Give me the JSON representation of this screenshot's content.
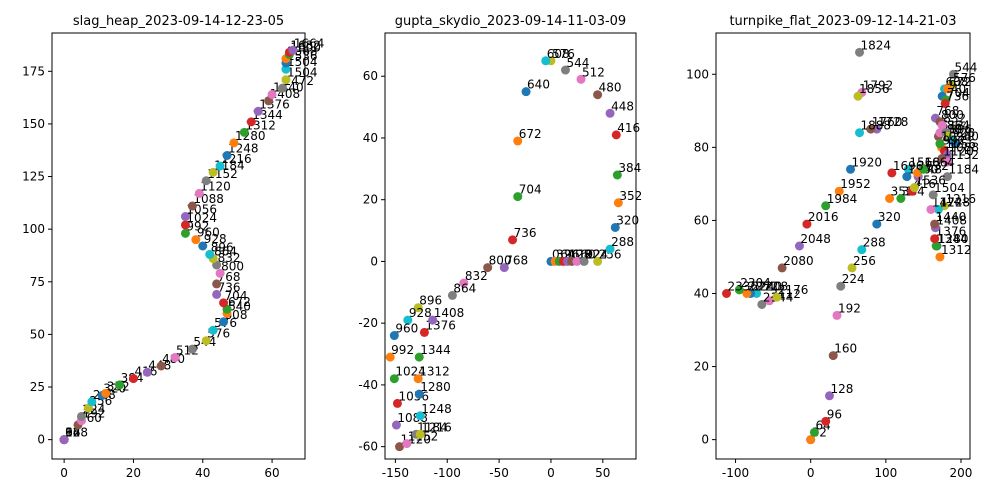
{
  "palette": [
    "#1f77b4",
    "#ff7f0e",
    "#2ca02c",
    "#d62728",
    "#9467bd",
    "#8c564b",
    "#e377c2",
    "#7f7f7f",
    "#bcbd22",
    "#17becf"
  ],
  "chart_data": [
    {
      "type": "scatter",
      "title": "slag_heap_2023-09-14-12-23-05",
      "xlim": [
        -3.5,
        69.5
      ],
      "ylim": [
        -9.2,
        193.2
      ],
      "xticks": [
        0,
        20,
        40,
        60
      ],
      "yticks": [
        0,
        25,
        50,
        75,
        100,
        125,
        150,
        175
      ],
      "points": [
        {
          "x": 0,
          "y": 0,
          "label": "0"
        },
        {
          "x": 0,
          "y": 0,
          "label": "32"
        },
        {
          "x": 0,
          "y": 0,
          "label": "64"
        },
        {
          "x": 0,
          "y": 0,
          "label": "96"
        },
        {
          "x": 0,
          "y": 0,
          "label": "128"
        },
        {
          "x": 4,
          "y": 7,
          "label": "160"
        },
        {
          "x": 5,
          "y": 9,
          "label": "192"
        },
        {
          "x": 5,
          "y": 11,
          "label": "224"
        },
        {
          "x": 7,
          "y": 15,
          "label": "256"
        },
        {
          "x": 8,
          "y": 18,
          "label": "288"
        },
        {
          "x": 11,
          "y": 21,
          "label": "320"
        },
        {
          "x": 12,
          "y": 22,
          "label": "352"
        },
        {
          "x": 16,
          "y": 26,
          "label": "384"
        },
        {
          "x": 20,
          "y": 29,
          "label": "416"
        },
        {
          "x": 24,
          "y": 32,
          "label": "448"
        },
        {
          "x": 28,
          "y": 35,
          "label": "480"
        },
        {
          "x": 32,
          "y": 39,
          "label": "512"
        },
        {
          "x": 37,
          "y": 43,
          "label": "544"
        },
        {
          "x": 41,
          "y": 47,
          "label": "576"
        },
        {
          "x": 43,
          "y": 52,
          "label": "576b"
        },
        {
          "x": 46,
          "y": 56,
          "label": "608"
        },
        {
          "x": 47,
          "y": 60,
          "label": "640"
        },
        {
          "x": 47,
          "y": 62,
          "label": "672"
        },
        {
          "x": 46,
          "y": 65,
          "label": "704"
        },
        {
          "x": 44,
          "y": 69,
          "label": "736"
        },
        {
          "x": 44,
          "y": 74,
          "label": "768"
        },
        {
          "x": 45,
          "y": 79,
          "label": "800"
        },
        {
          "x": 44,
          "y": 83,
          "label": "832"
        },
        {
          "x": 43,
          "y": 86,
          "label": "864"
        },
        {
          "x": 42,
          "y": 88,
          "label": "896"
        },
        {
          "x": 40,
          "y": 92,
          "label": "928"
        },
        {
          "x": 38,
          "y": 95,
          "label": "960"
        },
        {
          "x": 35,
          "y": 98,
          "label": "992"
        },
        {
          "x": 35,
          "y": 102,
          "label": "1024"
        },
        {
          "x": 35,
          "y": 106,
          "label": "1056"
        },
        {
          "x": 37,
          "y": 111,
          "label": "1088"
        },
        {
          "x": 39,
          "y": 117,
          "label": "1120"
        },
        {
          "x": 41,
          "y": 123,
          "label": "1152"
        },
        {
          "x": 43,
          "y": 127,
          "label": "1184"
        },
        {
          "x": 45,
          "y": 130,
          "label": "1216"
        },
        {
          "x": 47,
          "y": 135,
          "label": "1248"
        },
        {
          "x": 49,
          "y": 141,
          "label": "1280"
        },
        {
          "x": 52,
          "y": 146,
          "label": "1312"
        },
        {
          "x": 54,
          "y": 151,
          "label": "1344"
        },
        {
          "x": 56,
          "y": 156,
          "label": "1376"
        },
        {
          "x": 59,
          "y": 161,
          "label": "1408"
        },
        {
          "x": 60,
          "y": 164,
          "label": "1440"
        },
        {
          "x": 63,
          "y": 167,
          "label": "1472"
        },
        {
          "x": 64,
          "y": 171,
          "label": "1504"
        },
        {
          "x": 64,
          "y": 176,
          "label": "1504b"
        },
        {
          "x": 64,
          "y": 179,
          "label": "1536"
        },
        {
          "x": 64,
          "y": 181,
          "label": "1568"
        },
        {
          "x": 65,
          "y": 183,
          "label": "1600"
        },
        {
          "x": 65,
          "y": 184,
          "label": "1632"
        },
        {
          "x": 66,
          "y": 185,
          "label": "1664"
        }
      ]
    },
    {
      "type": "scatter",
      "title": "gupta_skydio_2023-09-14-11-03-09",
      "xlim": [
        -160,
        82
      ],
      "ylim": [
        -64,
        74
      ],
      "xticks": [
        -150,
        -100,
        -50,
        0,
        50
      ],
      "yticks": [
        -60,
        -40,
        -20,
        0,
        20,
        40,
        60
      ],
      "points": [
        {
          "x": 0,
          "y": 0,
          "label": "0"
        },
        {
          "x": 4,
          "y": 0,
          "label": "32"
        },
        {
          "x": 8,
          "y": 0,
          "label": "64"
        },
        {
          "x": 12,
          "y": 0,
          "label": "96"
        },
        {
          "x": 16,
          "y": 0,
          "label": "128"
        },
        {
          "x": 20,
          "y": 0,
          "label": "160"
        },
        {
          "x": 25,
          "y": 0,
          "label": "192"
        },
        {
          "x": 32,
          "y": 0,
          "label": "224"
        },
        {
          "x": 45,
          "y": 0,
          "label": "256"
        },
        {
          "x": 57,
          "y": 4,
          "label": "288"
        },
        {
          "x": 62,
          "y": 11,
          "label": "320"
        },
        {
          "x": 65,
          "y": 19,
          "label": "352"
        },
        {
          "x": 64,
          "y": 28,
          "label": "384"
        },
        {
          "x": 63,
          "y": 41,
          "label": "416"
        },
        {
          "x": 57,
          "y": 48,
          "label": "448"
        },
        {
          "x": 45,
          "y": 54,
          "label": "480"
        },
        {
          "x": 29,
          "y": 59,
          "label": "512"
        },
        {
          "x": 14,
          "y": 62,
          "label": "544"
        },
        {
          "x": 0,
          "y": 65,
          "label": "576"
        },
        {
          "x": -5,
          "y": 65,
          "label": "608"
        },
        {
          "x": -24,
          "y": 55,
          "label": "640"
        },
        {
          "x": -32,
          "y": 39,
          "label": "672"
        },
        {
          "x": -32,
          "y": 21,
          "label": "704"
        },
        {
          "x": -37,
          "y": 7,
          "label": "736"
        },
        {
          "x": -45,
          "y": -2,
          "label": "768"
        },
        {
          "x": -61,
          "y": -2,
          "label": "800"
        },
        {
          "x": -84,
          "y": -7,
          "label": "832"
        },
        {
          "x": -95,
          "y": -11,
          "label": "864"
        },
        {
          "x": -128,
          "y": -15,
          "label": "896"
        },
        {
          "x": -138,
          "y": -19,
          "label": "928"
        },
        {
          "x": -151,
          "y": -24,
          "label": "960"
        },
        {
          "x": -155,
          "y": -31,
          "label": "992"
        },
        {
          "x": -151,
          "y": -38,
          "label": "1024"
        },
        {
          "x": -148,
          "y": -46,
          "label": "1056"
        },
        {
          "x": -149,
          "y": -53,
          "label": "1088"
        },
        {
          "x": -146,
          "y": -60,
          "label": "1120"
        },
        {
          "x": -139,
          "y": -59,
          "label": "1152"
        },
        {
          "x": -130,
          "y": -56,
          "label": "1184"
        },
        {
          "x": -126,
          "y": -56,
          "label": "1216"
        },
        {
          "x": -126,
          "y": -50,
          "label": "1248"
        },
        {
          "x": -127,
          "y": -43,
          "label": "1280"
        },
        {
          "x": -128,
          "y": -38,
          "label": "1312"
        },
        {
          "x": -127,
          "y": -31,
          "label": "1344"
        },
        {
          "x": -122,
          "y": -23,
          "label": "1376"
        },
        {
          "x": -114,
          "y": -19,
          "label": "1408"
        }
      ]
    },
    {
      "type": "scatter",
      "title": "turnpike_flat_2023-09-12-14-21-03",
      "xlim": [
        -126,
        212
      ],
      "ylim": [
        -5.3,
        111.3
      ],
      "xticks": [
        -100,
        0,
        100,
        200
      ],
      "yticks": [
        0,
        20,
        40,
        60,
        80,
        100
      ],
      "points": [
        {
          "x": 0,
          "y": 0,
          "label": "0"
        },
        {
          "x": 0,
          "y": 0,
          "label": "32"
        },
        {
          "x": 5,
          "y": 2,
          "label": "64"
        },
        {
          "x": 20,
          "y": 5,
          "label": "96"
        },
        {
          "x": 25,
          "y": 12,
          "label": "128"
        },
        {
          "x": 30,
          "y": 23,
          "label": "160"
        },
        {
          "x": 35,
          "y": 34,
          "label": "192"
        },
        {
          "x": 40,
          "y": 42,
          "label": "224"
        },
        {
          "x": 55,
          "y": 47,
          "label": "256"
        },
        {
          "x": 68,
          "y": 52,
          "label": "288"
        },
        {
          "x": 88,
          "y": 59,
          "label": "320"
        },
        {
          "x": 105,
          "y": 66,
          "label": "352"
        },
        {
          "x": 120,
          "y": 66,
          "label": "384"
        },
        {
          "x": 135,
          "y": 68,
          "label": "416"
        },
        {
          "x": 143,
          "y": 72,
          "label": "448"
        },
        {
          "x": 170,
          "y": 83,
          "label": "480"
        },
        {
          "x": 172,
          "y": 84,
          "label": "512"
        },
        {
          "x": 190,
          "y": 100,
          "label": "544"
        },
        {
          "x": 188,
          "y": 97,
          "label": "576"
        },
        {
          "x": 178,
          "y": 96,
          "label": "608"
        },
        {
          "x": 175,
          "y": 94,
          "label": "640"
        },
        {
          "x": 182,
          "y": 96,
          "label": "672"
        },
        {
          "x": 180,
          "y": 93,
          "label": "704"
        },
        {
          "x": 179,
          "y": 92,
          "label": "736"
        },
        {
          "x": 166,
          "y": 88,
          "label": "768"
        },
        {
          "x": 172,
          "y": 87,
          "label": "800"
        },
        {
          "x": 175,
          "y": 86,
          "label": "832"
        },
        {
          "x": 180,
          "y": 84,
          "label": "864"
        },
        {
          "x": 183,
          "y": 83,
          "label": "896"
        },
        {
          "x": 187,
          "y": 82,
          "label": "928"
        },
        {
          "x": 192,
          "y": 81,
          "label": "960"
        },
        {
          "x": 174,
          "y": 80,
          "label": "992"
        },
        {
          "x": 172,
          "y": 81,
          "label": "1024"
        },
        {
          "x": 178,
          "y": 79,
          "label": "1056"
        },
        {
          "x": 182,
          "y": 78,
          "label": "1088"
        },
        {
          "x": 175,
          "y": 77,
          "label": "1120"
        },
        {
          "x": 182,
          "y": 76,
          "label": "1152"
        },
        {
          "x": 182,
          "y": 72,
          "label": "1184"
        },
        {
          "x": 178,
          "y": 64,
          "label": "1216"
        },
        {
          "x": 170,
          "y": 63,
          "label": "1248"
        },
        {
          "x": 168,
          "y": 53,
          "label": "1280"
        },
        {
          "x": 172,
          "y": 50,
          "label": "1312"
        },
        {
          "x": 167,
          "y": 53,
          "label": "1344"
        },
        {
          "x": 165,
          "y": 55,
          "label": "1376"
        },
        {
          "x": 166,
          "y": 58,
          "label": "1408"
        },
        {
          "x": 165,
          "y": 59,
          "label": "1440"
        },
        {
          "x": 160,
          "y": 63,
          "label": "1472"
        },
        {
          "x": 163,
          "y": 67,
          "label": "1504"
        },
        {
          "x": 138,
          "y": 69,
          "label": "1536"
        },
        {
          "x": 130,
          "y": 74,
          "label": "1568"
        },
        {
          "x": 128,
          "y": 72,
          "label": "1600"
        },
        {
          "x": 142,
          "y": 73,
          "label": "1632"
        },
        {
          "x": 150,
          "y": 74,
          "label": "1664"
        },
        {
          "x": 108,
          "y": 73,
          "label": "1696"
        },
        {
          "x": 88,
          "y": 85,
          "label": "1728"
        },
        {
          "x": 80,
          "y": 85,
          "label": "1760"
        },
        {
          "x": 68,
          "y": 95,
          "label": "1792"
        },
        {
          "x": 65,
          "y": 106,
          "label": "1824"
        },
        {
          "x": 63,
          "y": 94,
          "label": "1856"
        },
        {
          "x": 65,
          "y": 84,
          "label": "1888"
        },
        {
          "x": 53,
          "y": 74,
          "label": "1920"
        },
        {
          "x": 38,
          "y": 68,
          "label": "1952"
        },
        {
          "x": 20,
          "y": 64,
          "label": "1984"
        },
        {
          "x": -5,
          "y": 59,
          "label": "2016"
        },
        {
          "x": -15,
          "y": 53,
          "label": "2048"
        },
        {
          "x": -38,
          "y": 47,
          "label": "2080"
        },
        {
          "x": -55,
          "y": 38,
          "label": "2112"
        },
        {
          "x": -65,
          "y": 37,
          "label": "2144"
        },
        {
          "x": -45,
          "y": 39,
          "label": "2176"
        },
        {
          "x": -72,
          "y": 40,
          "label": "2208"
        },
        {
          "x": -80,
          "y": 40,
          "label": "2240"
        },
        {
          "x": -85,
          "y": 40,
          "label": "2272"
        },
        {
          "x": -95,
          "y": 41,
          "label": "2304"
        },
        {
          "x": -112,
          "y": 40,
          "label": "2336"
        }
      ]
    }
  ]
}
